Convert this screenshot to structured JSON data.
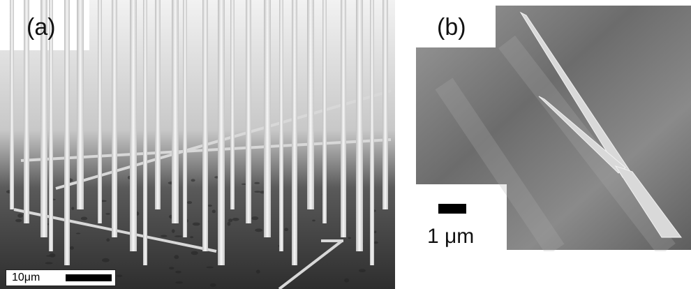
{
  "figure": {
    "panel_a": {
      "label": "(a)",
      "scale_text": "10μm",
      "description_icon": "sem-nanowire-array"
    },
    "panel_b": {
      "label": "(b)",
      "scale_text": "1 μm",
      "description_icon": "sem-branched-nanowire"
    }
  },
  "colors": {
    "background": "#ffffff",
    "sem_dark": "#3a3a3a",
    "sem_mid": "#8a8a8a",
    "wire": "#e8e8e8"
  }
}
